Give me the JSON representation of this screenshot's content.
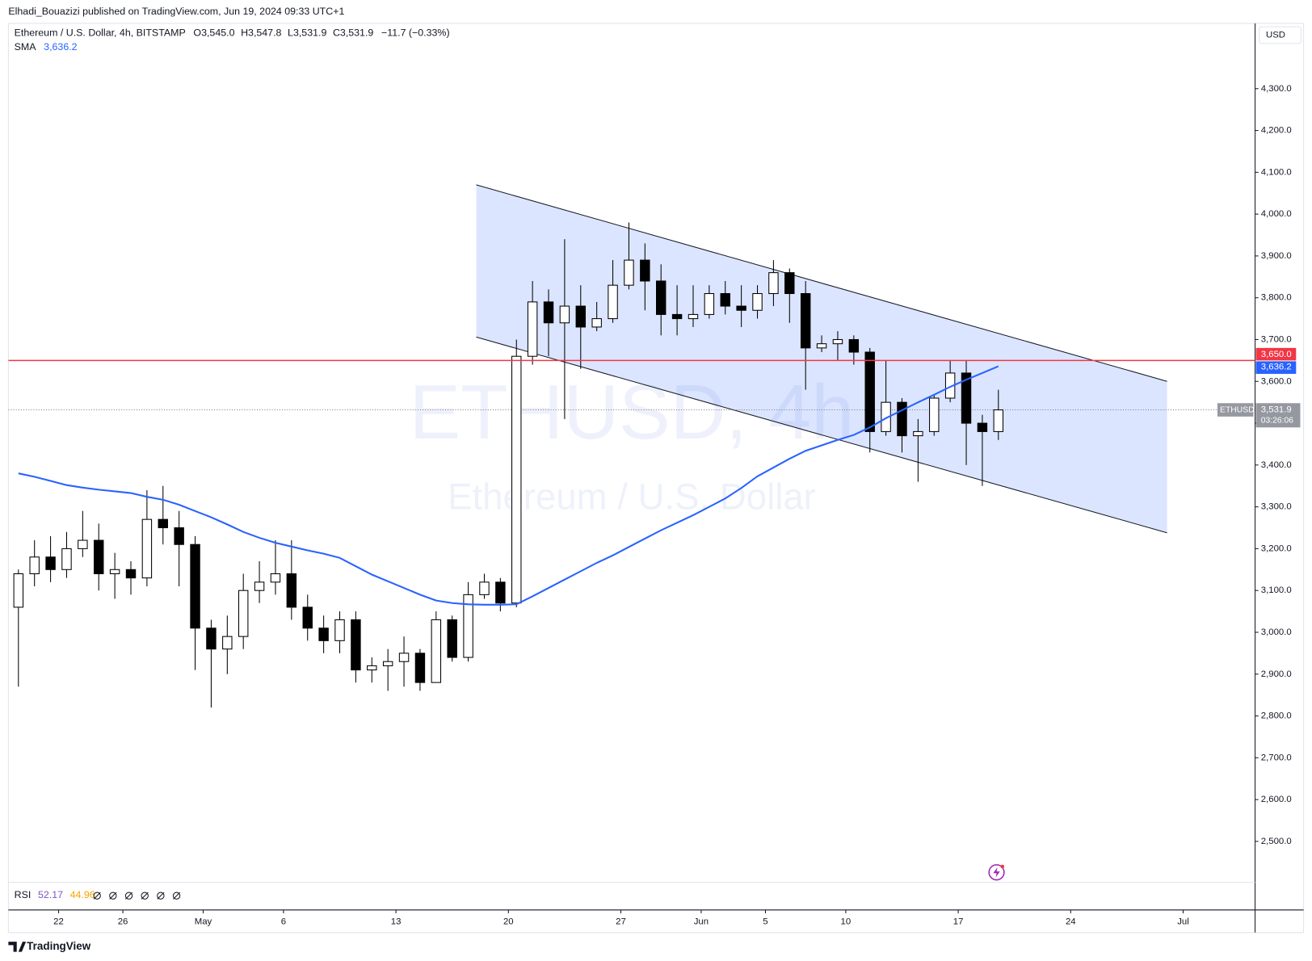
{
  "chart_data": {
    "type": "candlestick",
    "title": "Elhadi_Bouazizi published on TradingView.com, Jun 19, 2024 09:33 UTC+1",
    "legend": {
      "symbol": "Ethereum / U.S. Dollar, 4h, BITSTAMP",
      "ohlc": [
        {
          "label": "O",
          "value": "3,545.0"
        },
        {
          "label": "H",
          "value": "3,547.8"
        },
        {
          "label": "L",
          "value": "3,531.9"
        },
        {
          "label": "C",
          "value": "3,531.9"
        }
      ],
      "change": "−11.7 (−0.33%)"
    },
    "watermark": {
      "symbol": "ETHUSD, 4h",
      "name": "Ethereum / U.S. Dollar"
    },
    "currency": "USD",
    "up_color": "#ffffff",
    "down_color": "#000000",
    "wick_color": "#000000",
    "x": [
      "Apr 19",
      "Apr 20",
      "Apr 21",
      "Apr 22",
      "Apr 23",
      "Apr 24",
      "Apr 25",
      "Apr 26",
      "Apr 27",
      "Apr 28",
      "Apr 29",
      "Apr 30",
      "May 1",
      "May 2",
      "May 3",
      "May 4",
      "May 5",
      "May 6",
      "May 7",
      "May 8",
      "May 9",
      "May 10",
      "May 11",
      "May 12",
      "May 13",
      "May 14",
      "May 15",
      "May 16",
      "May 17",
      "May 18",
      "May 19",
      "May 20",
      "May 21",
      "May 22",
      "May 23",
      "May 24",
      "May 25",
      "May 26",
      "May 27",
      "May 28",
      "May 29",
      "May 30",
      "May 31",
      "Jun 1",
      "Jun 2",
      "Jun 3",
      "Jun 4",
      "Jun 5",
      "Jun 6",
      "Jun 7",
      "Jun 8",
      "Jun 9",
      "Jun 10",
      "Jun 11",
      "Jun 12",
      "Jun 13",
      "Jun 14",
      "Jun 15",
      "Jun 16",
      "Jun 17",
      "Jun 18",
      "Jun 19"
    ],
    "open": [
      3060,
      3140,
      3180,
      3150,
      3200,
      3220,
      3140,
      3150,
      3130,
      3270,
      3250,
      3210,
      3010,
      2960,
      2990,
      3100,
      3120,
      3140,
      3060,
      3010,
      2980,
      3030,
      2910,
      2920,
      2930,
      2950,
      2880,
      3030,
      2940,
      3090,
      3120,
      3070,
      3660,
      3790,
      3740,
      3780,
      3730,
      3750,
      3830,
      3890,
      3840,
      3760,
      3750,
      3760,
      3810,
      3780,
      3770,
      3810,
      3860,
      3810,
      3680,
      3690,
      3700,
      3670,
      3480,
      3550,
      3470,
      3480,
      3560,
      3620,
      3500,
      3480
    ],
    "high": [
      3150,
      3220,
      3230,
      3240,
      3290,
      3260,
      3190,
      3170,
      3340,
      3350,
      3290,
      3230,
      3030,
      3040,
      3140,
      3170,
      3220,
      3220,
      3090,
      3040,
      3050,
      3050,
      2940,
      2960,
      2990,
      2960,
      3050,
      3040,
      3120,
      3140,
      3130,
      3700,
      3840,
      3820,
      3940,
      3830,
      3790,
      3890,
      3980,
      3930,
      3880,
      3830,
      3830,
      3830,
      3840,
      3830,
      3830,
      3890,
      3870,
      3840,
      3710,
      3720,
      3710,
      3680,
      3650,
      3560,
      3510,
      3570,
      3650,
      3650,
      3520,
      3580
    ],
    "low": [
      2870,
      3110,
      3120,
      3130,
      3180,
      3100,
      3080,
      3090,
      3110,
      3210,
      3110,
      2910,
      2820,
      2900,
      2960,
      3070,
      3090,
      3030,
      2980,
      2950,
      2950,
      2880,
      2880,
      2860,
      2870,
      2860,
      2880,
      2930,
      2930,
      3080,
      3050,
      3060,
      3640,
      3660,
      3510,
      3630,
      3720,
      3740,
      3820,
      3770,
      3710,
      3710,
      3730,
      3750,
      3760,
      3730,
      3750,
      3780,
      3740,
      3580,
      3670,
      3650,
      3640,
      3430,
      3470,
      3430,
      3360,
      3470,
      3550,
      3400,
      3350,
      3460
    ],
    "close": [
      3140,
      3180,
      3150,
      3200,
      3220,
      3140,
      3150,
      3130,
      3270,
      3250,
      3210,
      3010,
      2960,
      2990,
      3100,
      3120,
      3140,
      3060,
      3010,
      2980,
      3030,
      2910,
      2920,
      2930,
      2950,
      2880,
      3030,
      2940,
      3090,
      3120,
      3070,
      3660,
      3790,
      3740,
      3780,
      3730,
      3750,
      3830,
      3890,
      3840,
      3760,
      3750,
      3760,
      3810,
      3780,
      3770,
      3810,
      3860,
      3810,
      3680,
      3690,
      3700,
      3670,
      3480,
      3550,
      3470,
      3480,
      3560,
      3620,
      3500,
      3480,
      3531.9
    ],
    "sma": {
      "name": "SMA",
      "color": "#2962ff",
      "last_label": "3,636.2",
      "values": [
        3380,
        3372,
        3362,
        3352,
        3346,
        3341,
        3337,
        3333,
        3324,
        3317,
        3305,
        3290,
        3275,
        3258,
        3240,
        3226,
        3214,
        3205,
        3196,
        3188,
        3178,
        3158,
        3138,
        3122,
        3106,
        3090,
        3076,
        3070,
        3067,
        3066,
        3066,
        3067,
        3086,
        3106,
        3126,
        3146,
        3166,
        3184,
        3204,
        3224,
        3244,
        3262,
        3280,
        3300,
        3320,
        3345,
        3373,
        3394,
        3415,
        3434,
        3447,
        3460,
        3472,
        3490,
        3512,
        3531,
        3550,
        3568,
        3587,
        3604,
        3620,
        3636.2
      ]
    },
    "channel": {
      "x": [
        "May 18",
        "Jun 30"
      ],
      "upper": [
        4070,
        3600
      ],
      "lower": [
        3706,
        3238
      ],
      "color": "#2962ff"
    },
    "hline": {
      "value": 3650,
      "label": "3,650.0",
      "color": "#f23645"
    },
    "last_price": {
      "value": 3531.9,
      "label": "3,531.9",
      "symbol": "ETHUSD",
      "countdown": "03:26:06"
    },
    "rsi": {
      "name": "RSI",
      "values": [
        "52.17",
        "44.96"
      ],
      "colors": [
        "#7e57c2",
        "#f7a600"
      ]
    },
    "xlim": [
      "Apr 19",
      "Jul 5"
    ],
    "xticks": [
      {
        "value": "Apr 22",
        "label": "22"
      },
      {
        "value": "Apr 26",
        "label": "26"
      },
      {
        "value": "May 1",
        "label": "May"
      },
      {
        "value": "May 6",
        "label": "6"
      },
      {
        "value": "May 13",
        "label": "13"
      },
      {
        "value": "May 20",
        "label": "20"
      },
      {
        "value": "May 27",
        "label": "27"
      },
      {
        "value": "Jun 1",
        "label": "Jun"
      },
      {
        "value": "Jun 5",
        "label": "5"
      },
      {
        "value": "Jun 10",
        "label": "10"
      },
      {
        "value": "Jun 17",
        "label": "17"
      },
      {
        "value": "Jun 24",
        "label": "24"
      },
      {
        "value": "Jul 1",
        "label": "Jul"
      }
    ],
    "ylim": [
      2400,
      4450
    ],
    "yticks": [
      {
        "value": 2500,
        "label": "2,500.0"
      },
      {
        "value": 2600,
        "label": "2,600.0"
      },
      {
        "value": 2700,
        "label": "2,700.0"
      },
      {
        "value": 2800,
        "label": "2,800.0"
      },
      {
        "value": 2900,
        "label": "2,900.0"
      },
      {
        "value": 3000,
        "label": "3,000.0"
      },
      {
        "value": 3100,
        "label": "3,100.0"
      },
      {
        "value": 3200,
        "label": "3,200.0"
      },
      {
        "value": 3300,
        "label": "3,300.0"
      },
      {
        "value": 3400,
        "label": "3,400.0"
      },
      {
        "value": 3500,
        "label": "3,500.0"
      },
      {
        "value": 3600,
        "label": "3,600.0"
      },
      {
        "value": 3700,
        "label": "3,700.0"
      },
      {
        "value": 3800,
        "label": "3,800.0"
      },
      {
        "value": 3900,
        "label": "3,900.0"
      },
      {
        "value": 4000,
        "label": "4,000.0"
      },
      {
        "value": 4100,
        "label": "4,100.0"
      },
      {
        "value": 4200,
        "label": "4,200.0"
      },
      {
        "value": 4300,
        "label": "4,300.0"
      }
    ],
    "grid": false,
    "footer": "TradingView"
  }
}
